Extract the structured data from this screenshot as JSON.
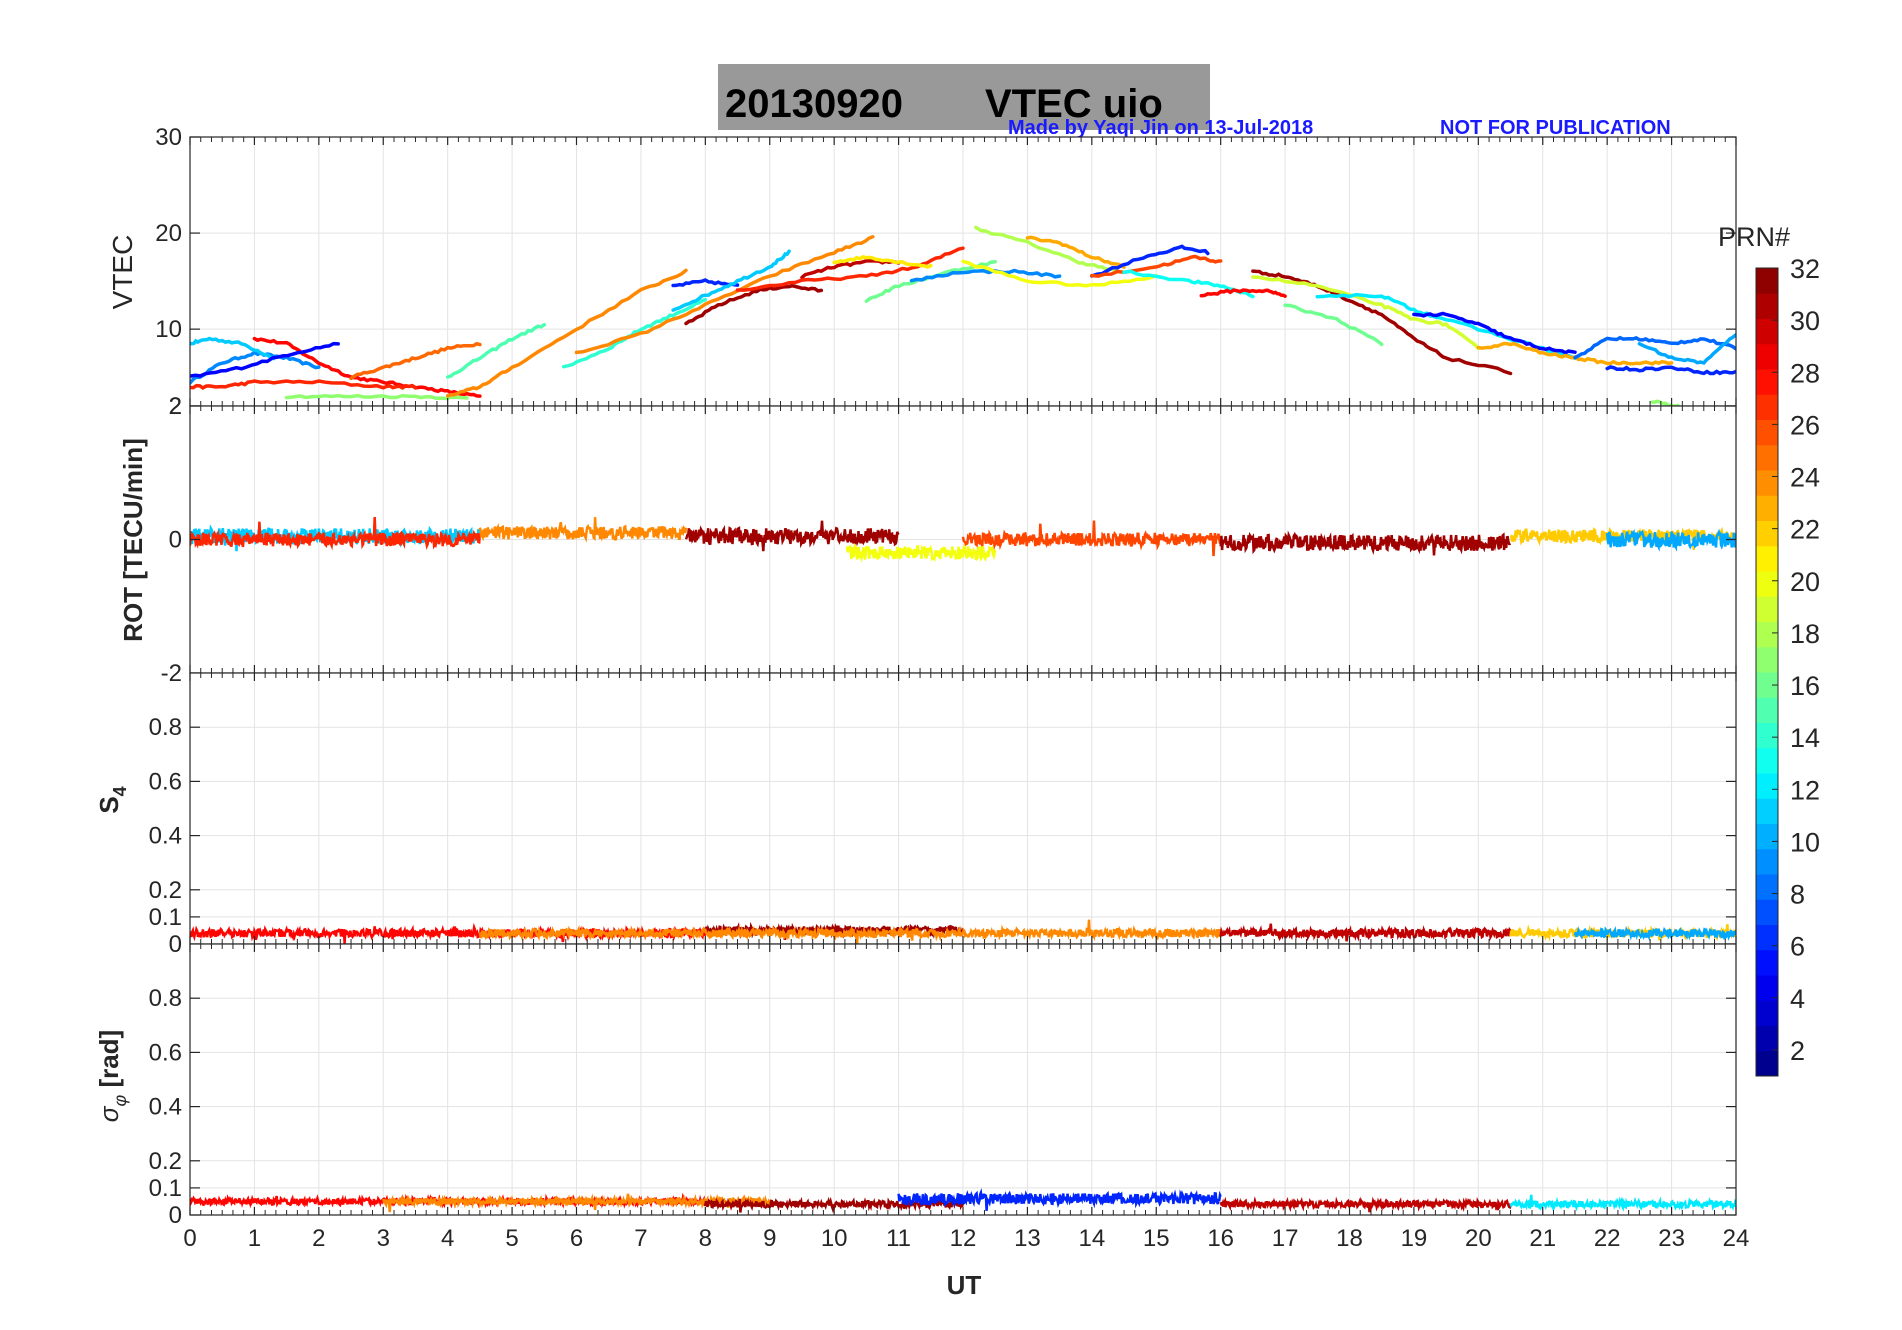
{
  "title": {
    "date": "20130920",
    "text": "VTEC  uio",
    "background": "#999999"
  },
  "credit": {
    "author": "Made by Yaqi Jin on 13-Jul-2018",
    "notice": "NOT FOR PUBLICATION",
    "color": "#1a1aff"
  },
  "x_axis": {
    "label": "UT",
    "range": [
      0,
      24
    ],
    "ticks": [
      "0",
      "1",
      "2",
      "3",
      "4",
      "5",
      "6",
      "7",
      "8",
      "9",
      "10",
      "11",
      "12",
      "13",
      "14",
      "15",
      "16",
      "17",
      "18",
      "19",
      "20",
      "21",
      "22",
      "23",
      "24"
    ]
  },
  "colorbar": {
    "title": "PRN#",
    "range": [
      1,
      32
    ],
    "ticks": [
      "2",
      "4",
      "6",
      "8",
      "10",
      "12",
      "14",
      "16",
      "18",
      "20",
      "22",
      "24",
      "26",
      "28",
      "30",
      "32"
    ],
    "colormap": "jet"
  },
  "chart_data": [
    {
      "type": "line",
      "name": "vtec-panel",
      "ylabel": "VTEC",
      "ylim": [
        2,
        30
      ],
      "yticks": [
        "30",
        "20",
        "10",
        "2"
      ],
      "grid": true,
      "series": [
        {
          "prn": 9,
          "x": [
            0,
            0.5,
            1.0,
            1.5,
            2.0
          ],
          "values": [
            4.5,
            6.5,
            7.5,
            7.0,
            6.0
          ]
        },
        {
          "prn": 11,
          "x": [
            0,
            0.3,
            0.8,
            1.3
          ],
          "values": [
            8.5,
            9.0,
            8.5,
            7.0
          ]
        },
        {
          "prn": 28,
          "x": [
            1.0,
            1.5,
            2.0,
            2.5,
            3.0,
            3.5,
            4.0,
            4.5
          ],
          "values": [
            9.0,
            8.5,
            6.5,
            5.0,
            4.5,
            4.0,
            3.5,
            3.0
          ]
        },
        {
          "prn": 5,
          "x": [
            0,
            0.8,
            1.6,
            2.3
          ],
          "values": [
            5.0,
            6.0,
            7.5,
            8.5
          ]
        },
        {
          "prn": 27,
          "x": [
            0,
            0.5,
            1.0,
            2.0,
            3.0,
            3.5
          ],
          "values": [
            4.0,
            4.0,
            4.5,
            4.5,
            4.0,
            4.0
          ]
        },
        {
          "prn": 25,
          "x": [
            2.5,
            3.0,
            3.5,
            4.0,
            4.5
          ],
          "values": [
            5.0,
            6.0,
            7.0,
            8.0,
            8.5
          ]
        },
        {
          "prn": 17,
          "x": [
            1.5,
            2.5,
            3.5,
            4.3
          ],
          "values": [
            3.0,
            3.0,
            3.0,
            2.8
          ]
        },
        {
          "prn": 15,
          "x": [
            4.0,
            4.5,
            5.0,
            5.5
          ],
          "values": [
            5.0,
            7.0,
            9.0,
            10.5
          ]
        },
        {
          "prn": 24,
          "x": [
            4.0,
            4.5,
            5.0,
            6.0,
            7.0,
            7.7
          ],
          "values": [
            3.0,
            4.0,
            6.0,
            10.0,
            14.0,
            16.0
          ]
        },
        {
          "prn": 14,
          "x": [
            5.8,
            6.5,
            7.0,
            7.5,
            8.0
          ],
          "values": [
            6.0,
            8.0,
            10.0,
            11.5,
            13.0
          ]
        },
        {
          "prn": 6,
          "x": [
            7.5,
            8.0,
            8.5
          ],
          "values": [
            14.5,
            15.0,
            14.5
          ]
        },
        {
          "prn": 11,
          "x": [
            7.5,
            8.0,
            8.5,
            9.0,
            9.3
          ],
          "values": [
            12.0,
            13.5,
            15.0,
            16.5,
            18.0
          ]
        },
        {
          "prn": 31,
          "x": [
            7.7,
            8.2,
            8.8,
            9.3,
            9.8
          ],
          "values": [
            10.5,
            12.5,
            14.0,
            14.5,
            14.0
          ]
        },
        {
          "prn": 24,
          "x": [
            6.0,
            7.0,
            8.0,
            9.0,
            10.0,
            10.6
          ],
          "values": [
            7.5,
            9.5,
            12.5,
            15.5,
            18.0,
            19.5
          ]
        },
        {
          "prn": 30,
          "x": [
            9.5,
            10.0,
            10.5,
            11.0
          ],
          "values": [
            15.5,
            16.5,
            17.0,
            17.0
          ]
        },
        {
          "prn": 27,
          "x": [
            8.5,
            9.5,
            10.5,
            11.3,
            12.0
          ],
          "values": [
            14.0,
            15.0,
            15.5,
            16.5,
            18.5
          ]
        },
        {
          "prn": 21,
          "x": [
            10.0,
            10.5,
            11.0,
            11.5
          ],
          "values": [
            17.0,
            17.5,
            17.0,
            16.5
          ]
        },
        {
          "prn": 16,
          "x": [
            10.5,
            11.0,
            11.8,
            12.5
          ],
          "values": [
            13.0,
            14.5,
            16.0,
            17.0
          ]
        },
        {
          "prn": 9,
          "x": [
            11.2,
            12.0,
            12.8,
            13.5
          ],
          "values": [
            15.0,
            16.0,
            16.0,
            15.5
          ]
        },
        {
          "prn": 18,
          "x": [
            12.2,
            13.0,
            13.8,
            14.4
          ],
          "values": [
            20.5,
            19.0,
            17.0,
            16.0
          ]
        },
        {
          "prn": 23,
          "x": [
            13.0,
            13.5,
            14.0,
            14.5
          ],
          "values": [
            19.5,
            19.0,
            17.5,
            16.5
          ]
        },
        {
          "prn": 20,
          "x": [
            12.0,
            13.0,
            14.0,
            15.0
          ],
          "values": [
            17.0,
            15.0,
            14.5,
            15.5
          ]
        },
        {
          "prn": 6,
          "x": [
            14.0,
            14.8,
            15.4,
            15.8
          ],
          "values": [
            15.5,
            17.5,
            18.5,
            18.0
          ]
        },
        {
          "prn": 26,
          "x": [
            14.0,
            15.0,
            15.6,
            16.0
          ],
          "values": [
            15.5,
            16.5,
            17.5,
            17.0
          ]
        },
        {
          "prn": 13,
          "x": [
            14.5,
            15.5,
            16.0,
            16.5
          ],
          "values": [
            16.0,
            15.0,
            14.5,
            13.5
          ]
        },
        {
          "prn": 28,
          "x": [
            15.7,
            16.2,
            16.7,
            17.0
          ],
          "values": [
            13.5,
            14.0,
            14.0,
            13.5
          ]
        },
        {
          "prn": 31,
          "x": [
            16.5,
            17.0,
            17.5,
            18.0,
            18.5,
            19.0,
            19.5,
            20.5
          ],
          "values": [
            16.0,
            15.5,
            14.5,
            13.0,
            11.5,
            9.0,
            7.0,
            5.5
          ]
        },
        {
          "prn": 19,
          "x": [
            16.5,
            17.5,
            18.5,
            19.0,
            19.5,
            20.0
          ],
          "values": [
            15.5,
            14.5,
            12.5,
            11.0,
            10.5,
            8.0
          ]
        },
        {
          "prn": 12,
          "x": [
            17.5,
            18.5,
            19.0,
            19.5,
            20.5,
            21.5
          ],
          "values": [
            13.5,
            13.5,
            12.0,
            11.0,
            9.0,
            7.0
          ]
        },
        {
          "prn": 16,
          "x": [
            17.0,
            17.8,
            18.5
          ],
          "values": [
            12.5,
            11.0,
            8.5
          ]
        },
        {
          "prn": 5,
          "x": [
            19.0,
            19.5,
            20.0,
            20.5,
            21.0,
            21.5
          ],
          "values": [
            11.5,
            11.5,
            10.5,
            9.0,
            8.0,
            7.5
          ]
        },
        {
          "prn": 23,
          "x": [
            20.0,
            20.5,
            21.0,
            21.5,
            22.0,
            22.5,
            23.0
          ],
          "values": [
            8.0,
            8.5,
            7.5,
            7.0,
            6.5,
            6.5,
            6.5
          ]
        },
        {
          "prn": 8,
          "x": [
            21.5,
            22.0,
            22.5,
            23.0,
            23.5,
            24.0
          ],
          "values": [
            7.0,
            9.0,
            9.0,
            8.5,
            9.0,
            8.0
          ]
        },
        {
          "prn": 6,
          "x": [
            22.0,
            22.5,
            23.0,
            23.5,
            24.0
          ],
          "values": [
            6.0,
            5.8,
            6.0,
            5.5,
            5.5
          ]
        },
        {
          "prn": 10,
          "x": [
            22.5,
            23.0,
            23.5,
            24.0
          ],
          "values": [
            8.5,
            7.0,
            6.5,
            9.5
          ]
        },
        {
          "prn": 17,
          "x": [
            22.7,
            23.1
          ],
          "values": [
            2.5,
            2.0
          ]
        }
      ]
    },
    {
      "type": "line",
      "name": "rot-panel",
      "ylabel": "ROT [TECU/min]",
      "ylim": [
        -2,
        2
      ],
      "yticks": [
        "2",
        "0",
        "-2"
      ],
      "grid": true,
      "description_note": "noisy band around 0 for all PRNs",
      "series": [
        {
          "prn": 11,
          "x_range": [
            0,
            4.5
          ],
          "center": 0.05,
          "amp": 0.12
        },
        {
          "prn": 27,
          "x_range": [
            0,
            4.5
          ],
          "center": 0.0,
          "amp": 0.1
        },
        {
          "prn": 24,
          "x_range": [
            4.5,
            7.7
          ],
          "center": 0.1,
          "amp": 0.1
        },
        {
          "prn": 31,
          "x_range": [
            7.7,
            11.0
          ],
          "center": 0.05,
          "amp": 0.12
        },
        {
          "prn": 20,
          "x_range": [
            10.2,
            12.5
          ],
          "center": -0.2,
          "amp": 0.1
        },
        {
          "prn": 26,
          "x_range": [
            12.0,
            16.0
          ],
          "center": 0.0,
          "amp": 0.1
        },
        {
          "prn": 31,
          "x_range": [
            16.0,
            20.5
          ],
          "center": -0.05,
          "amp": 0.12
        },
        {
          "prn": 22,
          "x_range": [
            20.5,
            24.0
          ],
          "center": 0.05,
          "amp": 0.1
        },
        {
          "prn": 10,
          "x_range": [
            22.0,
            24.0
          ],
          "center": 0.0,
          "amp": 0.12
        }
      ]
    },
    {
      "type": "line",
      "name": "s4-panel",
      "ylabel": "S4",
      "ylim": [
        0,
        1
      ],
      "yticks": [
        "0.8",
        "0.6",
        "0.4",
        "0.2",
        "0.1",
        "0"
      ],
      "grid": true,
      "series": [
        {
          "prn": 28,
          "x_range": [
            0,
            8.0
          ],
          "center": 0.04,
          "amp": 0.015
        },
        {
          "prn": 31,
          "x_range": [
            8.0,
            12.0
          ],
          "center": 0.05,
          "amp": 0.015
        },
        {
          "prn": 24,
          "x_range": [
            4.5,
            16.0
          ],
          "center": 0.04,
          "amp": 0.015
        },
        {
          "prn": 30,
          "x_range": [
            16.0,
            20.5
          ],
          "center": 0.04,
          "amp": 0.015
        },
        {
          "prn": 22,
          "x_range": [
            20.5,
            24.0
          ],
          "center": 0.04,
          "amp": 0.015
        },
        {
          "prn": 10,
          "x_range": [
            21.5,
            24.0
          ],
          "center": 0.04,
          "amp": 0.015
        }
      ]
    },
    {
      "type": "line",
      "name": "sigma-phi-panel",
      "ylabel": "σ_φ [rad]",
      "ylim": [
        0,
        1
      ],
      "yticks": [
        "0.8",
        "0.6",
        "0.4",
        "0.2",
        "0.1",
        "0"
      ],
      "grid": true,
      "series": [
        {
          "prn": 28,
          "x_range": [
            0,
            8.0
          ],
          "center": 0.05,
          "amp": 0.012
        },
        {
          "prn": 24,
          "x_range": [
            3.0,
            9.0
          ],
          "center": 0.05,
          "amp": 0.012
        },
        {
          "prn": 31,
          "x_range": [
            8.0,
            12.0
          ],
          "center": 0.04,
          "amp": 0.012
        },
        {
          "prn": 6,
          "x_range": [
            11.0,
            16.0
          ],
          "center": 0.06,
          "amp": 0.02
        },
        {
          "prn": 30,
          "x_range": [
            16.0,
            20.5
          ],
          "center": 0.04,
          "amp": 0.012
        },
        {
          "prn": 12,
          "x_range": [
            20.5,
            24.0
          ],
          "center": 0.04,
          "amp": 0.012
        }
      ]
    }
  ]
}
